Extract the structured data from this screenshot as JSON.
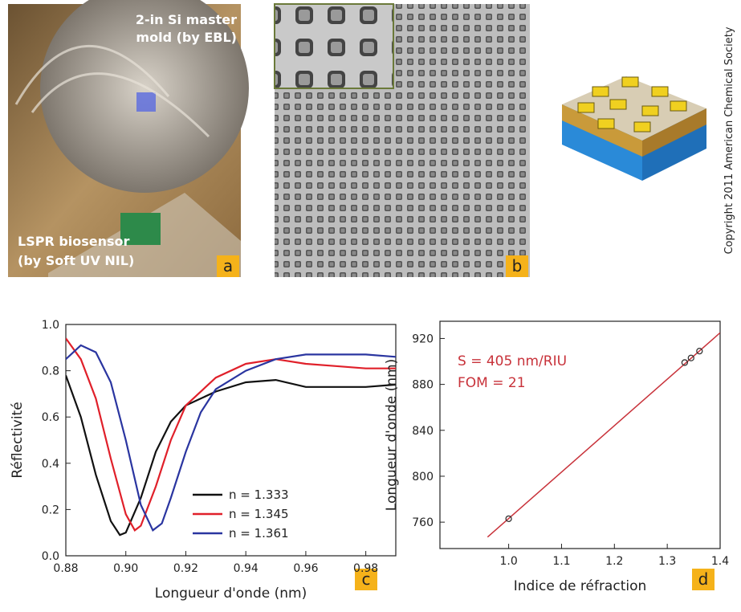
{
  "panels": {
    "photo_caption_top": "2-in Si master",
    "photo_caption_top_2": "mold (by EBL)",
    "photo_caption_bottom": "LSPR biosensor",
    "photo_caption_bottom_2": "(by Soft UV NIL)",
    "labels": [
      "a",
      "b",
      "c",
      "d"
    ],
    "copyright": "Copyright 2011 American Chemical Society"
  },
  "chart_data": [
    {
      "type": "line",
      "xlabel": "Longueur d'onde (nm)",
      "ylabel": "Réflectivité",
      "xlim": [
        0.88,
        0.99
      ],
      "xticks": [
        0.88,
        {
          "value": 0.9,
          "label": "0.90"
        },
        0.92,
        0.94,
        0.96,
        0.98
      ],
      "ylim": [
        0,
        1
      ],
      "yticks": [
        {
          "value": 0,
          "label": "0.0"
        },
        0.2,
        0.4,
        0.6,
        0.8,
        {
          "value": 1,
          "label": "1.0"
        }
      ],
      "legend": "lower-center",
      "series": [
        {
          "name": "n = 1.333",
          "color": "#111111",
          "x": [
            0.88,
            0.885,
            0.89,
            0.895,
            0.898,
            0.9,
            0.905,
            0.91,
            0.915,
            0.92,
            0.93,
            0.94,
            0.95,
            0.96,
            0.97,
            0.98,
            0.99
          ],
          "values": [
            0.78,
            0.6,
            0.35,
            0.15,
            0.09,
            0.1,
            0.25,
            0.45,
            0.58,
            0.65,
            0.71,
            0.75,
            0.76,
            0.73,
            0.73,
            0.73,
            0.74
          ]
        },
        {
          "name": "n = 1.345",
          "color": "#e0202a",
          "x": [
            0.88,
            0.885,
            0.89,
            0.895,
            0.9,
            0.903,
            0.905,
            0.91,
            0.915,
            0.92,
            0.93,
            0.94,
            0.95,
            0.96,
            0.97,
            0.98,
            0.99
          ],
          "values": [
            0.94,
            0.85,
            0.68,
            0.42,
            0.18,
            0.11,
            0.13,
            0.3,
            0.5,
            0.65,
            0.77,
            0.83,
            0.85,
            0.83,
            0.82,
            0.81,
            0.81
          ]
        },
        {
          "name": "n = 1.361",
          "color": "#2a35a0",
          "x": [
            0.88,
            0.885,
            0.89,
            0.895,
            0.9,
            0.905,
            0.909,
            0.912,
            0.915,
            0.92,
            0.925,
            0.93,
            0.94,
            0.95,
            0.96,
            0.97,
            0.98,
            0.99
          ],
          "values": [
            0.85,
            0.91,
            0.88,
            0.75,
            0.5,
            0.22,
            0.11,
            0.14,
            0.25,
            0.45,
            0.62,
            0.72,
            0.8,
            0.85,
            0.87,
            0.87,
            0.87,
            0.86
          ]
        }
      ]
    },
    {
      "type": "scatter",
      "xlabel": "Indice de réfraction",
      "ylabel": "Longueur d'onde (nm)",
      "xlim": [
        0.87,
        1.4
      ],
      "xticks": [
        {
          "value": 1,
          "label": "1.0"
        },
        1.1,
        1.2,
        1.3,
        1.4
      ],
      "ylim": [
        737,
        935
      ],
      "yticks": [
        760,
        800,
        840,
        880,
        920
      ],
      "annotations": [
        "S = 405 nm/RIU",
        "FOM = 21"
      ],
      "annotation_color": "#c8323a",
      "series": [
        {
          "style": "line",
          "color": "#c8323a",
          "x": [
            0.96,
            1.4
          ],
          "values": [
            747,
            925
          ]
        },
        {
          "style": "markers",
          "color": "#333333",
          "x": [
            1,
            1.333,
            1.345,
            1.361
          ],
          "values": [
            763,
            899,
            903,
            909
          ]
        }
      ]
    }
  ]
}
